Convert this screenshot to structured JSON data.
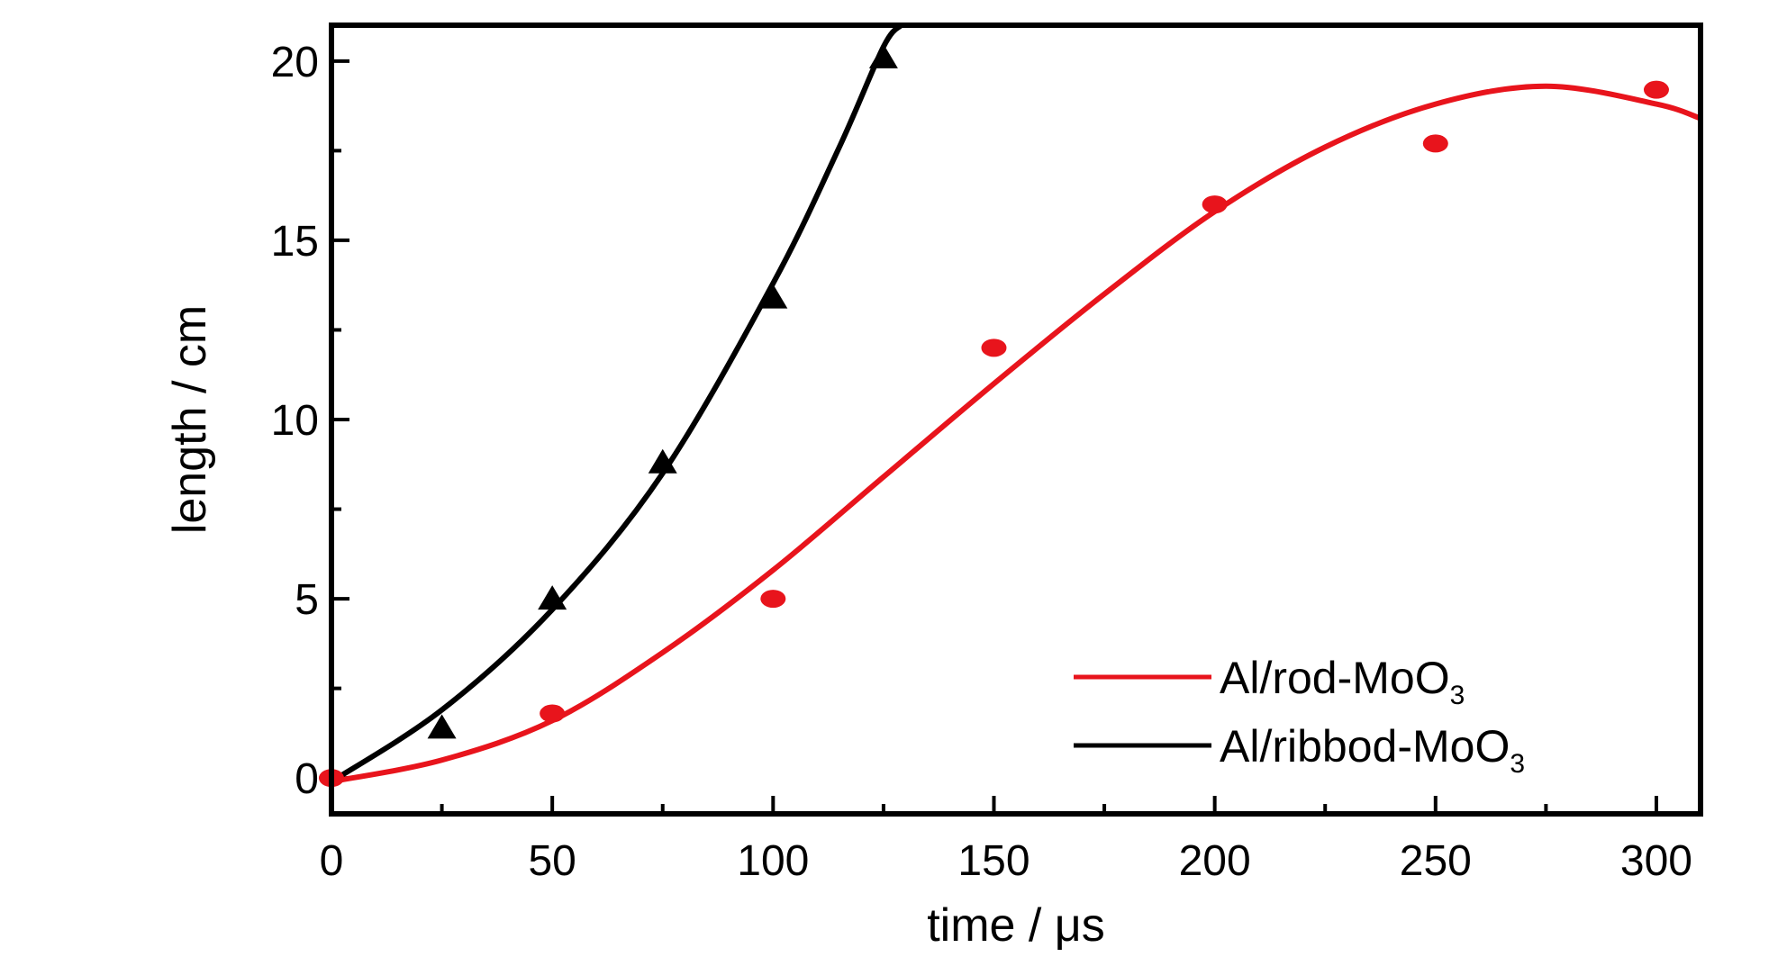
{
  "chart_data": {
    "type": "scatter",
    "xlabel_prefix": "time / ",
    "xlabel_unit": "μs",
    "ylabel": "length / cm",
    "xlim": [
      0,
      310
    ],
    "ylim": [
      -1,
      21
    ],
    "x_ticks": [
      0,
      50,
      100,
      150,
      200,
      250,
      300
    ],
    "y_ticks": [
      0,
      5,
      10,
      15,
      20
    ],
    "x_minor_ticks": [
      25,
      75,
      125,
      175,
      225,
      275
    ],
    "y_minor_ticks": [
      2.5,
      7.5,
      12.5,
      17.5
    ],
    "grid": false,
    "legend_position": "bottom-right",
    "series": [
      {
        "name_main": "Al/rod-MoO",
        "name_sub": "3",
        "color": "#e8141c",
        "marker": "ellipse",
        "x": [
          0,
          50,
          100,
          150,
          200,
          250,
          300
        ],
        "y": [
          0,
          1.8,
          5.0,
          12.0,
          16.0,
          17.7,
          19.2
        ],
        "fit_x": [
          0,
          25,
          50,
          75,
          100,
          125,
          150,
          175,
          200,
          225,
          250,
          275,
          300,
          310
        ],
        "fit_y": [
          -0.1,
          0.5,
          1.6,
          3.5,
          5.8,
          8.4,
          11.0,
          13.5,
          15.8,
          17.6,
          18.8,
          19.3,
          18.8,
          18.4
        ]
      },
      {
        "name_main": "Al/ribbod-MoO",
        "name_sub": "3",
        "color": "#000000",
        "marker": "triangle",
        "x": [
          25,
          50,
          75,
          100,
          125
        ],
        "y": [
          1.4,
          5.0,
          8.8,
          13.4,
          20.1
        ],
        "fit_x": [
          0,
          25,
          50,
          75,
          100,
          115,
          125,
          129
        ],
        "fit_y": [
          -0.1,
          1.9,
          4.7,
          8.5,
          13.8,
          17.6,
          20.4,
          21.0
        ]
      }
    ]
  }
}
